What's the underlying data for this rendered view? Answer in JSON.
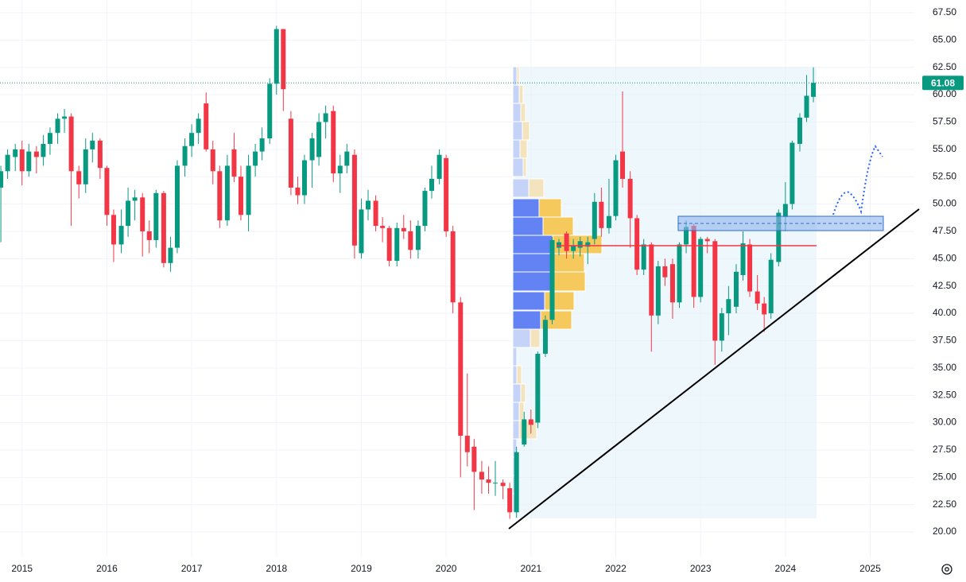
{
  "chart_data": {
    "type": "candlestick",
    "up_color": "#089981",
    "down_color": "#f23645",
    "grid": true,
    "x": [
      2014.75,
      2014.83,
      2014.92,
      2015,
      2015.08,
      2015.17,
      2015.25,
      2015.33,
      2015.42,
      2015.5,
      2015.58,
      2015.67,
      2015.75,
      2015.83,
      2015.92,
      2016,
      2016.08,
      2016.17,
      2016.25,
      2016.33,
      2016.42,
      2016.5,
      2016.58,
      2016.67,
      2016.75,
      2016.83,
      2016.92,
      2017,
      2017.08,
      2017.17,
      2017.25,
      2017.33,
      2017.42,
      2017.5,
      2017.58,
      2017.67,
      2017.75,
      2017.83,
      2017.92,
      2018,
      2018.08,
      2018.17,
      2018.25,
      2018.33,
      2018.42,
      2018.5,
      2018.58,
      2018.67,
      2018.75,
      2018.83,
      2018.92,
      2019,
      2019.08,
      2019.17,
      2019.25,
      2019.33,
      2019.42,
      2019.5,
      2019.58,
      2019.67,
      2019.75,
      2019.83,
      2019.92,
      2020,
      2020.08,
      2020.17,
      2020.25,
      2020.33,
      2020.42,
      2020.5,
      2020.58,
      2020.67,
      2020.75,
      2020.83,
      2020.92,
      2021,
      2021.08,
      2021.17,
      2021.25,
      2021.33,
      2021.42,
      2021.5,
      2021.58,
      2021.67,
      2021.75,
      2021.83,
      2021.92,
      2022,
      2022.08,
      2022.17,
      2022.25,
      2022.33,
      2022.42,
      2022.5,
      2022.58,
      2022.67,
      2022.75,
      2022.83,
      2022.92,
      2023,
      2023.08,
      2023.17,
      2023.25,
      2023.33,
      2023.42,
      2023.5,
      2023.58,
      2023.67,
      2023.75,
      2023.83,
      2023.92,
      2024,
      2024.08,
      2024.17,
      2024.25,
      2024.33
    ],
    "open": [
      51.5,
      53.0,
      54.3,
      55.0,
      53.0,
      54.8,
      54.3,
      55.5,
      56.5,
      57.8,
      58.0,
      53.0,
      51.8,
      55.0,
      55.8,
      53.3,
      49.0,
      46.3,
      48.0,
      50.3,
      50.6,
      47.5,
      46.7,
      51.0,
      44.6,
      46.0,
      53.5,
      55.3,
      56.5,
      59.2,
      55.0,
      53.0,
      48.5,
      55.0,
      52.5,
      49.0,
      53.5,
      54.8,
      56.0,
      61.0,
      66.0,
      57.8,
      51.5,
      50.8,
      54.0,
      54.3,
      57.5,
      58.5,
      52.8,
      53.5,
      54.5,
      45.5,
      49.5,
      50.3,
      48.0,
      47.8,
      44.8,
      47.8,
      47.5,
      45.8,
      48.0,
      51.2,
      52.3,
      54.2,
      47.5,
      41.0,
      28.8,
      27.8,
      25.5,
      24.8,
      24.5,
      24.5,
      24.0,
      21.8,
      28.0,
      30.3,
      30.0,
      36.3,
      39.4,
      46.0,
      47.3,
      45.7,
      46.0,
      46.1,
      46.8,
      50.2,
      47.8,
      48.9,
      54.8,
      52.3,
      48.7,
      44.0,
      46.3,
      39.8,
      44.3,
      44.5,
      41.0,
      46.3,
      48.0,
      41.5,
      46.8,
      46.6,
      37.5,
      40.0,
      40.6,
      43.5,
      46.3,
      42.0,
      40.9,
      40.0,
      44.7,
      48.8,
      50.0,
      55.5,
      57.9,
      59.8
    ],
    "high": [
      53.5,
      55.0,
      55.5,
      55.8,
      55.5,
      55.3,
      56.3,
      57.0,
      58.3,
      58.7,
      58.3,
      53.5,
      56.0,
      56.5,
      56.0,
      53.5,
      49.5,
      49.5,
      51.5,
      51.3,
      51.0,
      48.5,
      51.3,
      51.2,
      47.0,
      54.0,
      56.0,
      57.3,
      58.3,
      60.2,
      55.8,
      53.5,
      54.5,
      56.5,
      53.5,
      54.5,
      55.5,
      57.0,
      61.5,
      66.3,
      66.0,
      58.5,
      52.5,
      54.5,
      56.5,
      58.3,
      59.0,
      59.0,
      54.5,
      55.5,
      55.0,
      50.5,
      51.3,
      50.8,
      48.8,
      48.0,
      48.3,
      49.0,
      48.5,
      48.5,
      51.5,
      53.5,
      55.0,
      54.5,
      48.0,
      41.5,
      34.5,
      28.5,
      26.5,
      26.0,
      26.5,
      24.8,
      24.5,
      27.8,
      31.0,
      31.2,
      36.5,
      39.8,
      47.0,
      46.8,
      47.5,
      46.8,
      47.0,
      47.0,
      51.0,
      51.5,
      52.3,
      54.5,
      60.3,
      53.0,
      49.0,
      46.8,
      46.5,
      44.8,
      45.0,
      45.0,
      46.5,
      48.5,
      48.2,
      47.0,
      47.0,
      46.8,
      40.5,
      42.5,
      44.5,
      47.5,
      46.8,
      43.5,
      41.5,
      45.5,
      49.5,
      52.0,
      55.8,
      58.3,
      61.8,
      62.5
    ],
    "low": [
      46.5,
      52.3,
      53.0,
      51.7,
      52.5,
      52.8,
      53.5,
      54.5,
      55.5,
      56.5,
      48.0,
      50.5,
      51.0,
      53.8,
      52.3,
      48.0,
      44.7,
      45.5,
      47.0,
      48.5,
      45.2,
      45.5,
      46.0,
      44.2,
      43.8,
      45.5,
      52.5,
      54.3,
      55.5,
      54.8,
      51.8,
      47.8,
      48.0,
      52.0,
      48.5,
      47.5,
      52.5,
      54.0,
      55.5,
      60.0,
      58.5,
      50.8,
      50.0,
      50.0,
      51.5,
      53.5,
      56.0,
      52.0,
      51.0,
      52.8,
      45.0,
      45.0,
      48.5,
      47.5,
      46.5,
      44.3,
      44.3,
      46.8,
      45.0,
      45.0,
      47.5,
      50.5,
      51.8,
      47.0,
      40.0,
      25.0,
      26.0,
      22.0,
      23.5,
      23.5,
      23.3,
      23.0,
      21.2,
      21.3,
      27.8,
      29.0,
      29.5,
      36.0,
      39.0,
      45.3,
      45.0,
      45.0,
      45.2,
      44.5,
      46.3,
      47.0,
      47.3,
      48.5,
      51.5,
      46.0,
      43.5,
      43.5,
      36.5,
      39.0,
      42.5,
      39.5,
      40.5,
      45.5,
      40.5,
      41.0,
      45.5,
      35.3,
      36.5,
      38.0,
      40.0,
      43.0,
      41.5,
      40.3,
      38.3,
      39.5,
      44.3,
      47.5,
      49.5,
      54.8,
      57.5,
      59.3
    ],
    "close": [
      53.0,
      54.5,
      55.0,
      53.0,
      54.8,
      54.3,
      55.5,
      56.5,
      57.8,
      58.0,
      53.0,
      51.8,
      55.0,
      55.8,
      53.3,
      49.0,
      46.3,
      48.0,
      50.3,
      50.6,
      47.5,
      46.7,
      51.0,
      44.6,
      46.0,
      53.5,
      55.3,
      56.5,
      57.8,
      55.0,
      53.0,
      48.5,
      53.5,
      52.5,
      49.0,
      53.5,
      54.8,
      56.0,
      61.0,
      66.0,
      60.5,
      51.5,
      50.8,
      54.0,
      56.0,
      57.5,
      58.3,
      52.8,
      53.5,
      54.8,
      46.2,
      49.5,
      50.3,
      48.0,
      47.8,
      44.8,
      47.8,
      47.5,
      45.8,
      48.0,
      51.2,
      52.3,
      54.5,
      47.5,
      41.0,
      28.8,
      27.3,
      25.5,
      24.8,
      24.5,
      24.5,
      24.2,
      21.8,
      27.3,
      30.3,
      29.8,
      36.3,
      39.4,
      46.7,
      46.5,
      45.7,
      46.2,
      46.6,
      46.5,
      50.2,
      47.8,
      48.9,
      54.0,
      52.3,
      48.7,
      44.0,
      46.3,
      39.8,
      44.3,
      43.3,
      41.0,
      46.3,
      47.9,
      41.5,
      46.8,
      46.6,
      37.5,
      40.0,
      41.3,
      43.8,
      46.4,
      42.0,
      40.9,
      39.9,
      44.9,
      49.2,
      50.0,
      55.6,
      57.9,
      59.9,
      61.08
    ],
    "xlim": [
      2014.74,
      2025.52
    ],
    "xticks": [
      2015,
      2016,
      2017,
      2018,
      2019,
      2020,
      2021,
      2022,
      2023,
      2024,
      2025
    ],
    "ylim": [
      17.75,
      68.66
    ],
    "yticks": [
      {
        "value": 20,
        "label": "20.00"
      },
      {
        "value": 22.5,
        "label": "22.50"
      },
      {
        "value": 25,
        "label": "25.00"
      },
      {
        "value": 27.5,
        "label": "27.50"
      },
      {
        "value": 30,
        "label": "30.00"
      },
      {
        "value": 32.5,
        "label": "32.50"
      },
      {
        "value": 35,
        "label": "35.00"
      },
      {
        "value": 37.5,
        "label": "37.50"
      },
      {
        "value": 40,
        "label": "40.00"
      },
      {
        "value": 42.5,
        "label": "42.50"
      },
      {
        "value": 45,
        "label": "45.00"
      },
      {
        "value": 47.5,
        "label": "47.50"
      },
      {
        "value": 50,
        "label": "50.00"
      },
      {
        "value": 52.5,
        "label": "52.50"
      },
      {
        "value": 55,
        "label": "55.00"
      },
      {
        "value": 57.5,
        "label": "57.50"
      },
      {
        "value": 60,
        "label": "60.00"
      },
      {
        "value": 62.5,
        "label": "62.50"
      },
      {
        "value": 65,
        "label": "65.00"
      },
      {
        "value": 67.5,
        "label": "67.50"
      }
    ]
  }
}
